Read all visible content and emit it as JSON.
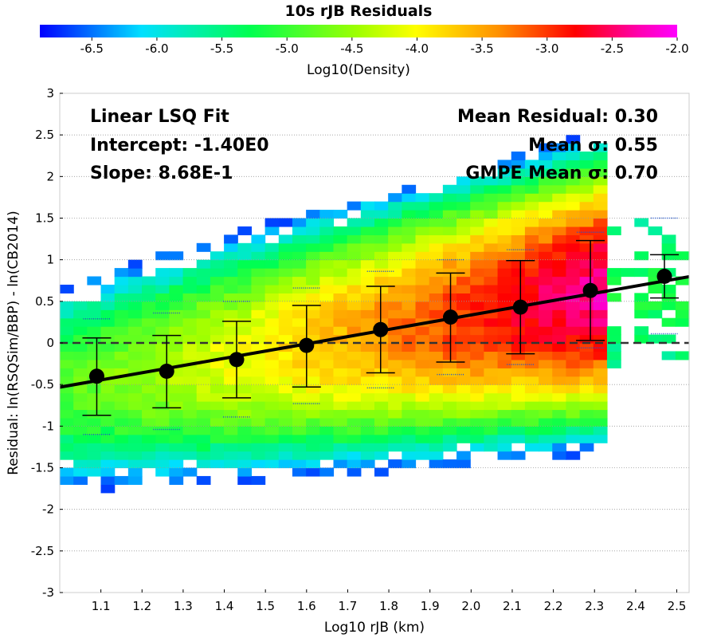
{
  "chart_data": {
    "type": "heatmap",
    "title": "10s rJB Residuals",
    "xlabel": "Log10 rJB (km)",
    "ylabel": "Residual: ln(RSQSim/BBP) - ln(CB2014)",
    "xlim": [
      1.0,
      2.53
    ],
    "ylim": [
      -3,
      3
    ],
    "x_ticks": [
      "1.1",
      "1.2",
      "1.3",
      "1.4",
      "1.5",
      "1.6",
      "1.7",
      "1.8",
      "1.9",
      "2.0",
      "2.1",
      "2.2",
      "2.3",
      "2.4",
      "2.5"
    ],
    "y_ticks": [
      "3",
      "2.5",
      "2",
      "1.5",
      "1",
      "0.5",
      "0",
      "-0.5",
      "-1",
      "-1.5",
      "-2",
      "-2.5",
      "-3"
    ],
    "grid": true,
    "colorbar": {
      "label": "Log10(Density)",
      "range": [
        -6.9,
        -2.0
      ],
      "ticks": [
        "-6.5",
        "-6.0",
        "-5.5",
        "-5.0",
        "-4.5",
        "-4.0",
        "-3.5",
        "-3.0",
        "-2.5",
        "-2.0"
      ]
    },
    "annotations": {
      "fit_title": "Linear LSQ Fit",
      "intercept": "Intercept: -1.40E0",
      "slope": "Slope: 8.68E-1",
      "mean_residual": "Mean Residual: 0.30",
      "mean_sigma": "Mean σ: 0.55",
      "gmpe_sigma": "GMPE Mean σ: 0.70"
    },
    "fit_line": {
      "intercept": -1.4,
      "slope": 0.868
    },
    "binned_means": [
      {
        "x": 1.09,
        "mean": -0.4,
        "low": -0.87,
        "high": 0.06,
        "sig_low": -1.1,
        "sig_high": 0.29
      },
      {
        "x": 1.26,
        "mean": -0.34,
        "low": -0.78,
        "high": 0.09,
        "sig_low": -1.04,
        "sig_high": 0.36
      },
      {
        "x": 1.43,
        "mean": -0.2,
        "low": -0.66,
        "high": 0.26,
        "sig_low": -0.89,
        "sig_high": 0.5
      },
      {
        "x": 1.6,
        "mean": -0.03,
        "low": -0.53,
        "high": 0.45,
        "sig_low": -0.73,
        "sig_high": 0.66
      },
      {
        "x": 1.78,
        "mean": 0.16,
        "low": -0.36,
        "high": 0.68,
        "sig_low": -0.54,
        "sig_high": 0.86
      },
      {
        "x": 1.95,
        "mean": 0.31,
        "low": -0.23,
        "high": 0.84,
        "sig_low": -0.38,
        "sig_high": 1.0
      },
      {
        "x": 2.12,
        "mean": 0.43,
        "low": -0.13,
        "high": 0.99,
        "sig_low": -0.26,
        "sig_high": 1.12
      },
      {
        "x": 2.29,
        "mean": 0.63,
        "low": 0.03,
        "high": 1.23,
        "sig_low": -0.06,
        "sig_high": 1.33
      },
      {
        "x": 2.47,
        "mean": 0.8,
        "low": 0.54,
        "high": 1.06,
        "sig_low": 0.11,
        "sig_high": 1.5
      }
    ],
    "density": {
      "x_bins": [
        1.0,
        2.53
      ],
      "y_bins": [
        -3,
        3
      ],
      "n_x": 46,
      "n_y": 60
    }
  }
}
